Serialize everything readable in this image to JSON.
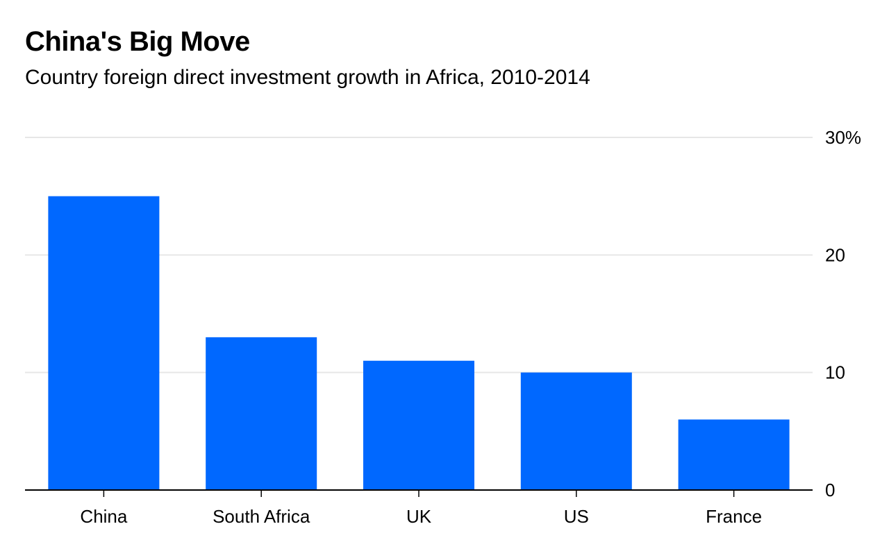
{
  "chart_data": {
    "type": "bar",
    "title": "China's Big Move",
    "subtitle": "Country foreign direct investment growth in Africa, 2010-2014",
    "categories": [
      "China",
      "South Africa",
      "UK",
      "US",
      "France"
    ],
    "values": [
      25,
      13,
      11,
      10,
      6
    ],
    "ylim": [
      0,
      30
    ],
    "yticks": [
      0,
      10,
      20,
      30
    ],
    "ytick_labels": [
      "0",
      "10",
      "20",
      "30%"
    ],
    "xlabel": "",
    "ylabel": "",
    "grid": true,
    "y_axis_side": "right",
    "legend": "none",
    "bar_color": "#0068ff",
    "grid_color": "#e6e6e6",
    "axis_color": "#000000"
  }
}
